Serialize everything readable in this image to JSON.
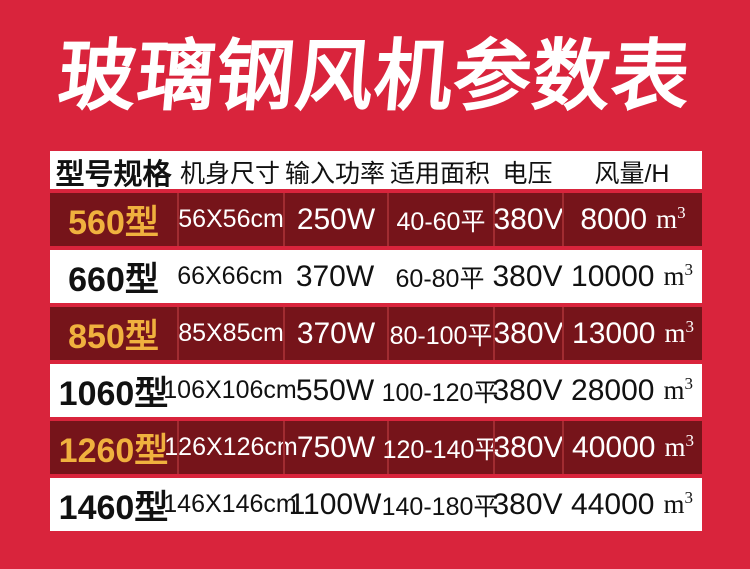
{
  "colors": {
    "page_bg": "#d9243c",
    "dark_row_bg": "#76141a",
    "divider": "#a02c31",
    "gold": "#f0b13e",
    "light_row_bg": "#ffffff",
    "header_text": "#111111",
    "light_text": "#ffffff"
  },
  "chart_data": {
    "type": "table",
    "title": "玻璃钢风机参数表",
    "columns": [
      "型号规格",
      "机身尺寸",
      "输入功率",
      "适用面积",
      "电压",
      "风量/H"
    ],
    "unit": {
      "base": "m",
      "sup": "3"
    },
    "rows": [
      {
        "model": "560型",
        "size": "56X56cm",
        "power": "250W",
        "area": "40-60平",
        "voltage": "380V",
        "airflow": "8000"
      },
      {
        "model": "660型",
        "size": "66X66cm",
        "power": "370W",
        "area": "60-80平",
        "voltage": "380V",
        "airflow": "10000"
      },
      {
        "model": "850型",
        "size": "85X85cm",
        "power": "370W",
        "area": "80-100平",
        "voltage": "380V",
        "airflow": "13000"
      },
      {
        "model": "1060型",
        "size": "106X106cm",
        "power": "550W",
        "area": "100-120平",
        "voltage": "380V",
        "airflow": "28000"
      },
      {
        "model": "1260型",
        "size": "126X126cm",
        "power": "750W",
        "area": "120-140平",
        "voltage": "380V",
        "airflow": "40000"
      },
      {
        "model": "1460型",
        "size": "146X146cm",
        "power": "1100W",
        "area": "140-180平",
        "voltage": "380V",
        "airflow": "44000"
      }
    ]
  }
}
